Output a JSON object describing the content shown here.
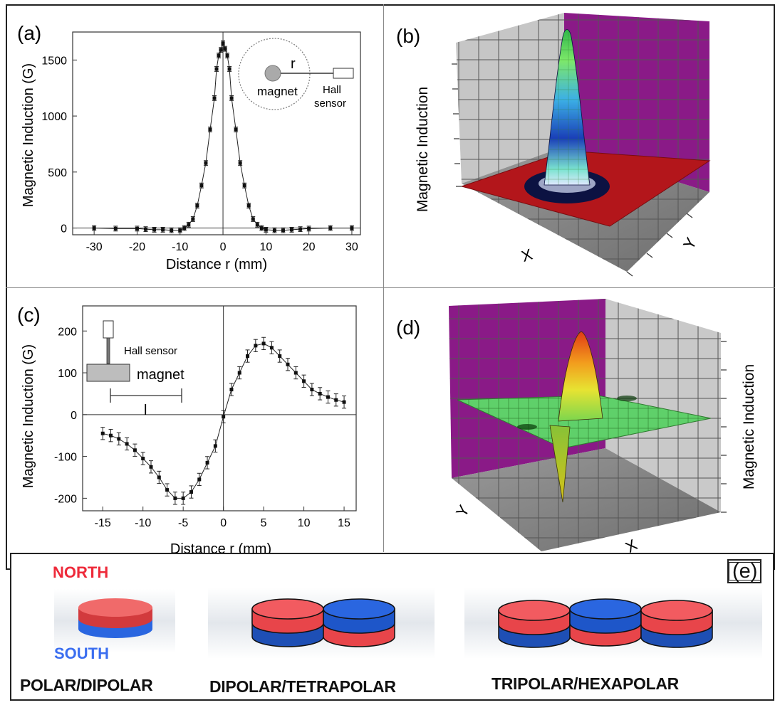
{
  "chart_data": [
    {
      "panel": "(a)",
      "type": "scatter",
      "xlabel": "Distance r (mm)",
      "ylabel": "Magnetic Induction (G)",
      "xlim": [
        -35,
        32
      ],
      "ylim": [
        -60,
        1750
      ],
      "xticks": [
        -30,
        -20,
        -10,
        0,
        10,
        20,
        30
      ],
      "yticks": [
        0,
        500,
        1000,
        1500
      ],
      "x": [
        -30,
        -25,
        -20,
        -18,
        -16,
        -14,
        -12,
        -10,
        -9,
        -8,
        -7,
        -6,
        -5,
        -4,
        -3,
        -2,
        -1.5,
        -1,
        -0.5,
        0,
        0.5,
        1,
        1.5,
        2,
        3,
        4,
        5,
        6,
        7,
        8,
        9,
        10,
        12,
        14,
        16,
        18,
        20,
        25,
        30
      ],
      "y": [
        0,
        -5,
        -5,
        -10,
        -15,
        -15,
        -20,
        -20,
        0,
        30,
        80,
        200,
        380,
        580,
        880,
        1160,
        1420,
        1540,
        1590,
        1650,
        1600,
        1540,
        1420,
        1160,
        880,
        580,
        380,
        200,
        80,
        30,
        0,
        -15,
        -20,
        -20,
        -15,
        -10,
        -5,
        0,
        0
      ],
      "inset": {
        "r_label": "r",
        "magnet_label": "magnet",
        "sensor_label_1": "Hall",
        "sensor_label_2": "sensor"
      }
    },
    {
      "panel": "(b)",
      "type": "surface3d",
      "zlabel": "Magnetic Induction",
      "xlabel": "X",
      "ylabel": "Y"
    },
    {
      "panel": "(c)",
      "type": "scatter",
      "xlabel": "Distance r (mm)",
      "ylabel": "Magnetic Induction (G)",
      "xlim": [
        -17.5,
        16.5
      ],
      "ylim": [
        -230,
        260
      ],
      "xticks": [
        -15,
        -10,
        -5,
        0,
        5,
        10,
        15
      ],
      "yticks": [
        -200,
        -100,
        0,
        100,
        200
      ],
      "x": [
        -15,
        -14,
        -13,
        -12,
        -11,
        -10,
        -9,
        -8,
        -7,
        -6,
        -5,
        -4,
        -3,
        -2,
        -1,
        0,
        1,
        2,
        3,
        4,
        5,
        6,
        7,
        8,
        9,
        10,
        11,
        12,
        13,
        14,
        15
      ],
      "y": [
        -45,
        -50,
        -58,
        -70,
        -85,
        -105,
        -125,
        -150,
        -180,
        -200,
        -200,
        -185,
        -155,
        -115,
        -75,
        -5,
        60,
        100,
        140,
        165,
        170,
        160,
        140,
        120,
        100,
        80,
        60,
        50,
        42,
        35,
        30
      ],
      "inset": {
        "sensor_label": "Hall sensor",
        "magnet_label": "magnet",
        "l_label": "l"
      }
    },
    {
      "panel": "(d)",
      "type": "surface3d",
      "zlabel": "Magnetic Induction",
      "xlabel": "X",
      "ylabel": "Y"
    }
  ],
  "panel_e": {
    "label": "(e)",
    "north_label": "NORTH",
    "south_label": "SOUTH",
    "captions": [
      "POLAR/DIPOLAR",
      "DIPOLAR/TETRAPOLAR",
      "TRIPOLAR/HEXAPOLAR"
    ]
  },
  "colors": {
    "magnet_red": "#e8454a",
    "magnet_blue": "#1e56c9",
    "surface_red": "#b3161b",
    "surface_green": "#5fd06a",
    "wall_purple": "#8a1a87",
    "wall_gray": "#c9c9c9",
    "north_text": "#ee2a3a",
    "south_text": "#3b6ef0"
  }
}
